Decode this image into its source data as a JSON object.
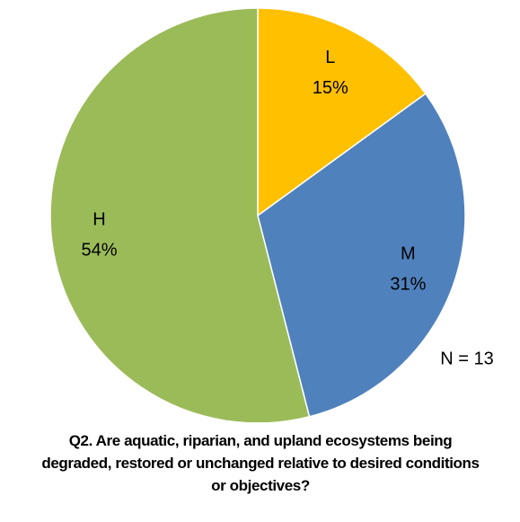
{
  "chart_data": {
    "type": "pie",
    "title": "Q2. Are aquatic, riparian, and upland ecosystems being degraded, restored or unchanged relative to desired conditions or objectives?",
    "categories": [
      "L",
      "M",
      "H"
    ],
    "values": [
      15,
      31,
      54
    ],
    "value_labels": [
      "15%",
      "31%",
      "54%"
    ],
    "colors": [
      "#FFC000",
      "#4F81BD",
      "#9BBB59"
    ],
    "annotation": "N = 13"
  }
}
